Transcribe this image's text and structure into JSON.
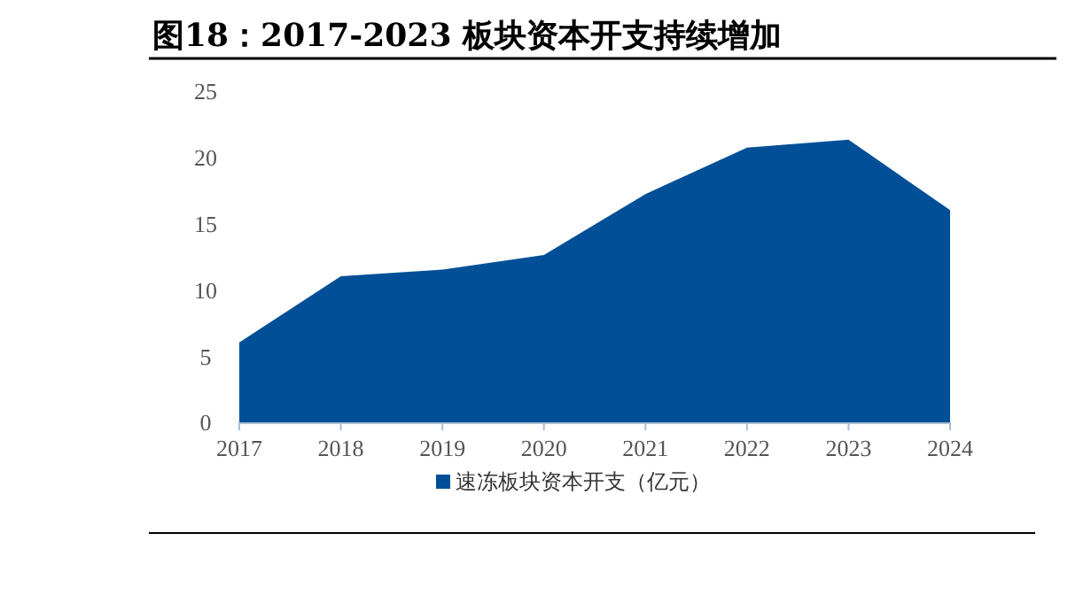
{
  "chart_data": {
    "type": "area",
    "title": "图18：2017-2023 板块资本开支持续增加",
    "categories": [
      "2017",
      "2018",
      "2019",
      "2020",
      "2021",
      "2022",
      "2023",
      "2024"
    ],
    "series": [
      {
        "name": "速冻板块资本开支（亿元）",
        "color": "#014f96",
        "values": [
          6.1,
          11.1,
          11.6,
          12.7,
          17.3,
          20.8,
          21.4,
          16.1
        ]
      }
    ],
    "ylim": [
      0,
      25
    ],
    "yticks": [
      0,
      5,
      10,
      15,
      20,
      25
    ],
    "grid": false,
    "legend": "bottom"
  }
}
